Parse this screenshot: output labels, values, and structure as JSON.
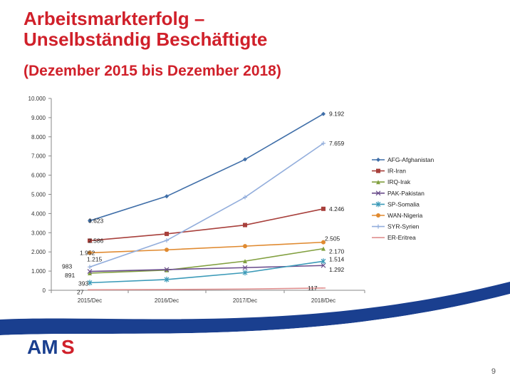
{
  "slide": {
    "title_line1": "Arbeitsmarkterfolg –",
    "title_line2": "Unselbständig Beschäftigte",
    "subtitle": "(Dezember 2015 bis Dezember 2018)",
    "page_number": "9",
    "logo_text_am": "AM",
    "logo_text_s": "S",
    "colors": {
      "title": "#d0202a",
      "swoosh": "#1a3f8f",
      "logo_blue": "#1a3f8f",
      "logo_red": "#d0202a"
    }
  },
  "chart_data": {
    "type": "line",
    "categories": [
      "2015/Dec",
      "2016/Dec",
      "2017/Dec",
      "2018/Dec"
    ],
    "ylim": [
      0,
      10000
    ],
    "yticks": [
      "0",
      "1.000",
      "2.000",
      "3.000",
      "4.000",
      "5.000",
      "6.000",
      "7.000",
      "8.000",
      "9.000",
      "10.000"
    ],
    "grid": false,
    "legend_position": "right",
    "series": [
      {
        "name": "AFG-Afghanistan",
        "color": "#3f6ea8",
        "marker": "diamond",
        "values": [
          3623,
          4900,
          6820,
          9192
        ],
        "labels": [
          "3.623",
          null,
          null,
          "9.192"
        ]
      },
      {
        "name": "IR-Iran",
        "color": "#a8403c",
        "marker": "square",
        "values": [
          2586,
          2940,
          3400,
          4246
        ],
        "labels": [
          "2.586",
          null,
          null,
          "4.246"
        ]
      },
      {
        "name": "IRQ-Irak",
        "color": "#82a040",
        "marker": "triangle",
        "values": [
          891,
          1050,
          1520,
          2170
        ],
        "labels": [
          "891",
          null,
          null,
          "2.170"
        ]
      },
      {
        "name": "PAK-Pakistan",
        "color": "#6a4d8c",
        "marker": "x",
        "values": [
          983,
          1080,
          1180,
          1292
        ],
        "labels": [
          "983",
          null,
          null,
          "1.292"
        ]
      },
      {
        "name": "SP-Somalia",
        "color": "#3b9ab8",
        "marker": "star",
        "values": [
          393,
          560,
          920,
          1514
        ],
        "labels": [
          "393",
          null,
          null,
          "1.514"
        ]
      },
      {
        "name": "WAN-Nigeria",
        "color": "#e08a30",
        "marker": "circle",
        "values": [
          1952,
          2110,
          2300,
          2505
        ],
        "labels": [
          "1.952",
          null,
          null,
          "2.505"
        ]
      },
      {
        "name": "SYR-Syrien",
        "color": "#93aedc",
        "marker": "plus",
        "values": [
          1215,
          2600,
          4850,
          7659
        ],
        "labels": [
          "1.215",
          null,
          null,
          "7.659"
        ]
      },
      {
        "name": "ER-Eritrea",
        "color": "#e09090",
        "marker": "dash",
        "values": [
          27,
          40,
          65,
          117
        ],
        "labels": [
          "27",
          null,
          null,
          "117"
        ]
      }
    ]
  }
}
